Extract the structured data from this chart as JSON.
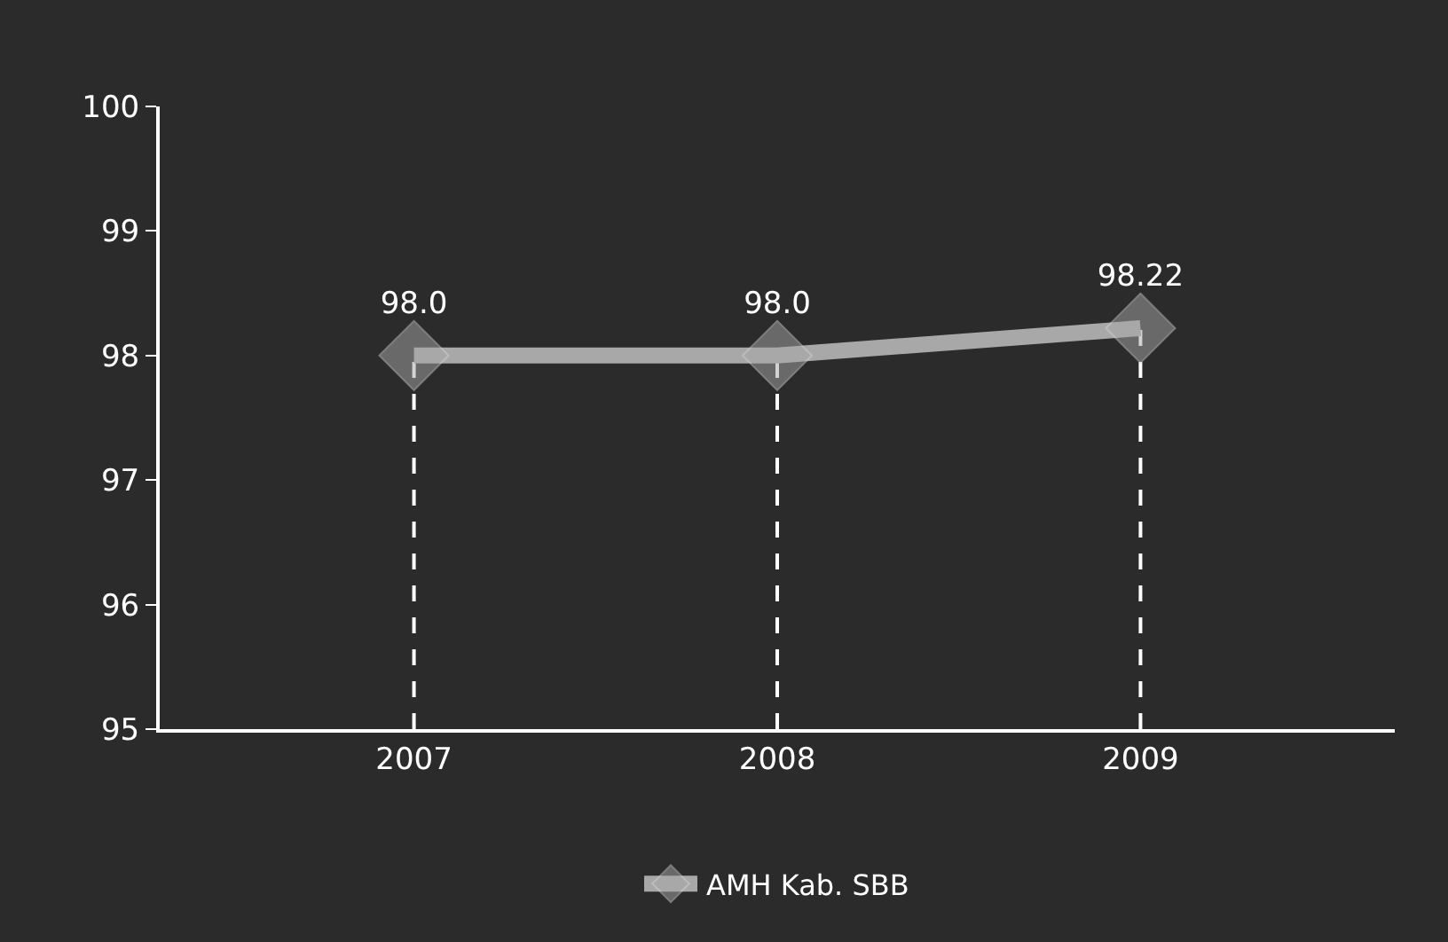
{
  "chart_data": {
    "type": "line",
    "categories": [
      "2007",
      "2008",
      "2009"
    ],
    "series": [
      {
        "name": "AMH Kab. SBB",
        "color": "#a8a8a8",
        "values": [
          98.0,
          98.0,
          98.22
        ],
        "value_labels": [
          "98.0",
          "98.0",
          "98.22"
        ]
      }
    ],
    "ylim": [
      95,
      100
    ],
    "yticks": [
      95,
      96,
      97,
      98,
      99,
      100
    ],
    "grid": false,
    "legend": "bottom",
    "marker": "diamond",
    "line_style": "solid",
    "ref_lines": [
      {
        "axis": "x",
        "value": "2007",
        "color": "#ffffff",
        "line_style": "dashed"
      },
      {
        "axis": "x",
        "value": "2008",
        "color": "#ffffff",
        "line_style": "dashed"
      },
      {
        "axis": "x",
        "value": "2009",
        "color": "#ffffff",
        "line_style": "dashed"
      }
    ]
  }
}
